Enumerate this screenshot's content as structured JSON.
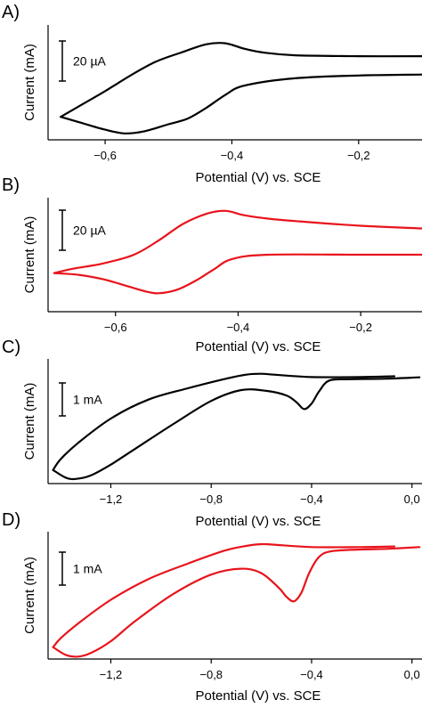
{
  "chart_data": [
    {
      "panel_label": "A)",
      "type": "line",
      "xlabel": "Potential (V) vs. SCE",
      "ylabel": "Current (mA)",
      "xlim": [
        -0.69,
        -0.1
      ],
      "xticks": [
        "-0,6",
        "-0,4",
        "-0,2"
      ],
      "xtick_values": [
        -0.6,
        -0.4,
        -0.2
      ],
      "scale_bar": {
        "label": "20 µA",
        "value": 20
      },
      "ylim": [
        -75,
        50
      ],
      "color": "#000000",
      "series": [
        {
          "x": [
            -0.1,
            -0.2,
            -0.3,
            -0.35,
            -0.38,
            -0.41,
            -0.44,
            -0.48,
            -0.52,
            -0.56,
            -0.6,
            -0.64,
            -0.67
          ],
          "y": [
            16,
            16,
            17,
            20,
            24,
            30,
            29,
            20,
            10,
            -5,
            -22,
            -38,
            -50
          ]
        },
        {
          "x": [
            -0.67,
            -0.64,
            -0.6,
            -0.57,
            -0.54,
            -0.5,
            -0.47,
            -0.44,
            -0.41,
            -0.38,
            -0.3,
            -0.2,
            -0.1
          ],
          "y": [
            -50,
            -56,
            -64,
            -68,
            -66,
            -58,
            -52,
            -40,
            -26,
            -16,
            -8,
            -5,
            -4
          ]
        }
      ]
    },
    {
      "panel_label": "B)",
      "type": "line",
      "xlabel": "Potential (V) vs. SCE",
      "ylabel": "Current (mA)",
      "xlim": [
        -0.71,
        -0.1
      ],
      "xticks": [
        "-0,6",
        "-0,4",
        "-0,2"
      ],
      "xtick_values": [
        -0.6,
        -0.4,
        -0.2
      ],
      "scale_bar": {
        "label": "20 µA",
        "value": 20
      },
      "ylim": [
        -65,
        65
      ],
      "color": "#e8141c",
      "series": [
        {
          "x": [
            -0.1,
            -0.2,
            -0.3,
            -0.35,
            -0.39,
            -0.42,
            -0.45,
            -0.49,
            -0.53,
            -0.57,
            -0.62,
            -0.67,
            -0.7
          ],
          "y": [
            30,
            33,
            38,
            41,
            45,
            50,
            47,
            35,
            16,
            0,
            -10,
            -16,
            -21
          ]
        },
        {
          "x": [
            -0.7,
            -0.66,
            -0.62,
            -0.58,
            -0.55,
            -0.53,
            -0.5,
            -0.47,
            -0.44,
            -0.41,
            -0.35,
            -0.2,
            -0.1
          ],
          "y": [
            -21,
            -23,
            -28,
            -36,
            -42,
            -44,
            -40,
            -30,
            -17,
            -5,
            0,
            0,
            0
          ]
        }
      ]
    },
    {
      "panel_label": "C)",
      "type": "line",
      "xlabel": "Potential (V) vs. SCE",
      "ylabel": "Current (mA)",
      "xlim": [
        -1.45,
        0.04
      ],
      "xticks": [
        "-1,2",
        "-0,8",
        "-0,4",
        "0,0"
      ],
      "xtick_values": [
        -1.2,
        -0.8,
        -0.4,
        0.0
      ],
      "scale_bar": {
        "label": "1 mA",
        "value": 1
      },
      "ylim": [
        -3.5,
        1.1
      ],
      "color": "#000000",
      "series": [
        {
          "x": [
            -0.07,
            -0.2,
            -0.4,
            -0.55,
            -0.6,
            -0.66,
            -0.75,
            -0.9,
            -1.05,
            -1.2,
            -1.33,
            -1.4,
            -1.43
          ],
          "y": [
            0.46,
            0.43,
            0.43,
            0.52,
            0.55,
            0.52,
            0.35,
            0.0,
            -0.4,
            -1.1,
            -2.0,
            -2.6,
            -3.0
          ]
        },
        {
          "x": [
            -1.43,
            -1.38,
            -1.34,
            -1.28,
            -1.2,
            -1.1,
            -0.95,
            -0.8,
            -0.68,
            -0.58,
            -0.5,
            -0.46,
            -0.43,
            -0.4,
            -0.37,
            -0.33,
            -0.25,
            -0.1,
            0.03
          ],
          "y": [
            -3.0,
            -3.28,
            -3.33,
            -3.2,
            -2.8,
            -2.2,
            -1.3,
            -0.45,
            -0.05,
            -0.08,
            -0.25,
            -0.5,
            -0.75,
            -0.55,
            -0.1,
            0.3,
            0.35,
            0.37,
            0.42
          ]
        }
      ]
    },
    {
      "panel_label": "D)",
      "type": "line",
      "xlabel": "Potential (V) vs. SCE",
      "ylabel": "Current (mA)",
      "xlim": [
        -1.45,
        0.04
      ],
      "xticks": [
        "-1,2",
        "-0,8",
        "-0,4",
        "0,0"
      ],
      "xtick_values": [
        -1.2,
        -0.8,
        -0.4,
        0.0
      ],
      "scale_bar": {
        "label": "1 mA",
        "value": 1
      },
      "ylim": [
        -3.2,
        1.1
      ],
      "color": "#e8141c",
      "series": [
        {
          "x": [
            -0.07,
            -0.2,
            -0.4,
            -0.55,
            -0.6,
            -0.66,
            -0.75,
            -0.9,
            -1.05,
            -1.2,
            -1.33,
            -1.4,
            -1.43
          ],
          "y": [
            0.6,
            0.58,
            0.58,
            0.66,
            0.68,
            0.62,
            0.45,
            0.0,
            -0.5,
            -1.2,
            -2.0,
            -2.5,
            -2.8
          ]
        },
        {
          "x": [
            -1.43,
            -1.38,
            -1.33,
            -1.28,
            -1.2,
            -1.1,
            -0.95,
            -0.8,
            -0.68,
            -0.6,
            -0.53,
            -0.5,
            -0.47,
            -0.44,
            -0.41,
            -0.37,
            -0.32,
            -0.2,
            -0.1,
            0.03
          ],
          "y": [
            -2.8,
            -3.06,
            -3.12,
            -3.0,
            -2.6,
            -1.9,
            -1.0,
            -0.35,
            -0.15,
            -0.3,
            -0.8,
            -1.1,
            -1.25,
            -0.95,
            -0.3,
            0.25,
            0.44,
            0.5,
            0.52,
            0.58
          ]
        }
      ]
    }
  ]
}
